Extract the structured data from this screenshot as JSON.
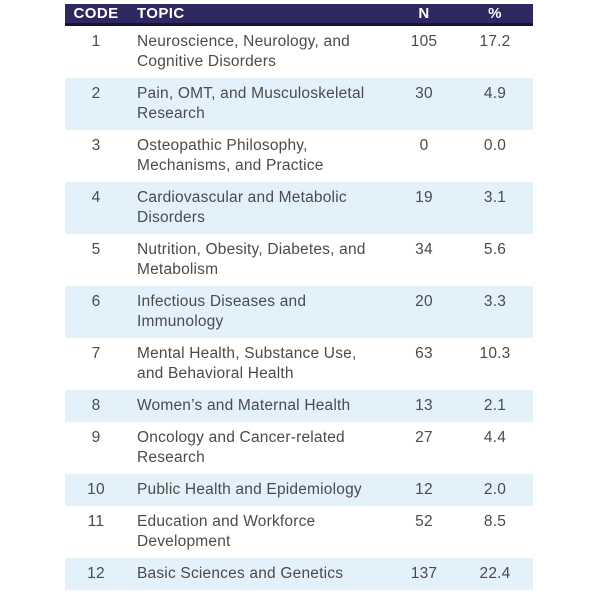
{
  "table": {
    "columns": [
      {
        "key": "code",
        "label": "CODE"
      },
      {
        "key": "topic",
        "label": "TOPIC"
      },
      {
        "key": "n",
        "label": "N"
      },
      {
        "key": "pct",
        "label": "%"
      }
    ],
    "rows": [
      {
        "code": "1",
        "topic": "Neuroscience, Neurology, and Cognitive Disorders",
        "n": "105",
        "pct": "17.2"
      },
      {
        "code": "2",
        "topic": "Pain, OMT, and Musculoskeletal Research",
        "n": "30",
        "pct": "4.9"
      },
      {
        "code": "3",
        "topic": "Osteopathic Philosophy, Mechanisms, and Practice",
        "n": "0",
        "pct": "0.0"
      },
      {
        "code": "4",
        "topic": "Cardiovascular and Metabolic Disorders",
        "n": "19",
        "pct": "3.1"
      },
      {
        "code": "5",
        "topic": "Nutrition, Obesity, Diabetes, and Metabolism",
        "n": "34",
        "pct": "5.6"
      },
      {
        "code": "6",
        "topic": "Infectious Diseases and Immunology",
        "n": "20",
        "pct": "3.3"
      },
      {
        "code": "7",
        "topic": "Mental Health, Substance Use, and Behavioral Health",
        "n": "63",
        "pct": "10.3"
      },
      {
        "code": "8",
        "topic": "Women’s and Maternal Health",
        "n": "13",
        "pct": "2.1"
      },
      {
        "code": "9",
        "topic": "Oncology and Cancer-related Research",
        "n": "27",
        "pct": "4.4"
      },
      {
        "code": "10",
        "topic": "Public Health and Epidemiology",
        "n": "12",
        "pct": "2.0"
      },
      {
        "code": "11",
        "topic": "Education and Workforce Development",
        "n": "52",
        "pct": "8.5"
      },
      {
        "code": "12",
        "topic": "Basic Sciences and Genetics",
        "n": "137",
        "pct": "22.4"
      }
    ]
  },
  "colors": {
    "header_bg": "#2d2860",
    "header_border": "#16152b",
    "header_text": "#ffffff",
    "stripe_bg": "#e3f1fa",
    "row_bg": "#ffffff",
    "body_text": "#4b4b4b"
  },
  "chart_data": {
    "type": "table",
    "columns": [
      "CODE",
      "TOPIC",
      "N",
      "%"
    ],
    "rows": [
      [
        1,
        "Neuroscience, Neurology, and Cognitive Disorders",
        105,
        17.2
      ],
      [
        2,
        "Pain, OMT, and Musculoskeletal Research",
        30,
        4.9
      ],
      [
        3,
        "Osteopathic Philosophy, Mechanisms, and Practice",
        0,
        0.0
      ],
      [
        4,
        "Cardiovascular and Metabolic Disorders",
        19,
        3.1
      ],
      [
        5,
        "Nutrition, Obesity, Diabetes, and Metabolism",
        34,
        5.6
      ],
      [
        6,
        "Infectious Diseases and Immunology",
        20,
        3.3
      ],
      [
        7,
        "Mental Health, Substance Use, and Behavioral Health",
        63,
        10.3
      ],
      [
        8,
        "Women’s and Maternal Health",
        13,
        2.1
      ],
      [
        9,
        "Oncology and Cancer-related Research",
        27,
        4.4
      ],
      [
        10,
        "Public Health and Epidemiology",
        12,
        2.0
      ],
      [
        11,
        "Education and Workforce Development",
        52,
        8.5
      ],
      [
        12,
        "Basic Sciences and Genetics",
        137,
        22.4
      ]
    ],
    "layout_hints": {
      "striped_rows": "even codes highlighted light blue",
      "header_style": "dark indigo bar with white bold labels and thick dark bottom rule",
      "alignment": {
        "CODE": "center",
        "TOPIC": "left",
        "N": "center",
        "%": "center"
      }
    }
  }
}
